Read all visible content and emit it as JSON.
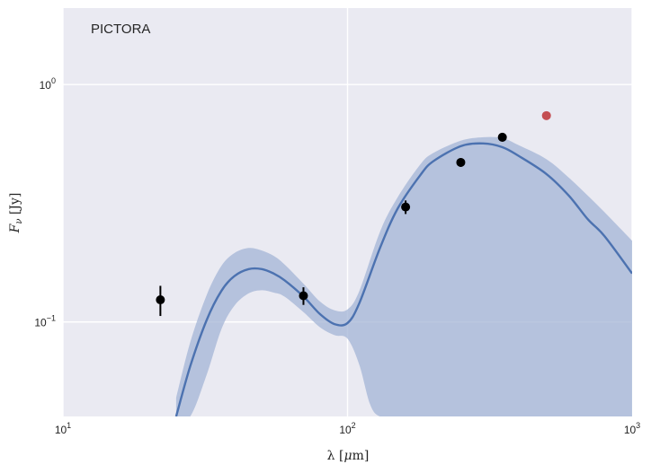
{
  "chart_data": {
    "type": "line",
    "title": "",
    "annotation": "PICTORA",
    "xlabel_main": "λ [",
    "xlabel_unit_greek": "μ",
    "xlabel_unit_rest": "m]",
    "ylabel_main": "F",
    "ylabel_sub": "ν",
    "ylabel_unit": " [Jy]",
    "x_scale": "log",
    "y_scale": "log",
    "xlim": [
      10,
      1000
    ],
    "ylim": [
      0.04,
      2.1
    ],
    "grid": true,
    "x_ticks": [
      {
        "value": 10,
        "base": "10",
        "exp": "1"
      },
      {
        "value": 100,
        "base": "10",
        "exp": "2"
      },
      {
        "value": 1000,
        "base": "10",
        "exp": "3"
      }
    ],
    "y_ticks": [
      {
        "value": 0.1,
        "base": "10",
        "exp": "−1"
      },
      {
        "value": 1,
        "base": "10",
        "exp": "0"
      }
    ],
    "colors": {
      "background": "#eaeaf2",
      "grid": "#ffffff",
      "model_line": "#4c72b0",
      "uncertainty_band": "#a3b4d6",
      "observed_points": "#000000",
      "extra_point": "#c44e52"
    },
    "observed_points": [
      {
        "x": 22,
        "y": 0.124,
        "yerr_low": 0.018,
        "yerr_high": 0.018
      },
      {
        "x": 70,
        "y": 0.129,
        "yerr_low": 0.011,
        "yerr_high": 0.011
      },
      {
        "x": 160,
        "y": 0.305,
        "yerr_low": 0.02,
        "yerr_high": 0.02
      },
      {
        "x": 250,
        "y": 0.47,
        "yerr_low": 0.02,
        "yerr_high": 0.02
      },
      {
        "x": 350,
        "y": 0.6,
        "yerr_low": 0.025,
        "yerr_high": 0.025
      }
    ],
    "extra_points": [
      {
        "x": 500,
        "y": 0.74
      }
    ],
    "model_curve": {
      "x": [
        25,
        28,
        32,
        36,
        40,
        45,
        50,
        55,
        60,
        70,
        80,
        90,
        100,
        110,
        130,
        150,
        180,
        200,
        250,
        300,
        350,
        400,
        500,
        600,
        700,
        800,
        1000
      ],
      "y": [
        0.04,
        0.065,
        0.102,
        0.135,
        0.156,
        0.167,
        0.167,
        0.16,
        0.15,
        0.128,
        0.108,
        0.098,
        0.099,
        0.12,
        0.205,
        0.3,
        0.415,
        0.475,
        0.55,
        0.565,
        0.545,
        0.5,
        0.42,
        0.34,
        0.27,
        0.23,
        0.16
      ]
    },
    "band_upper": {
      "x": [
        25,
        28,
        32,
        36,
        40,
        45,
        50,
        55,
        60,
        70,
        80,
        90,
        100,
        110,
        130,
        150,
        180,
        200,
        250,
        300,
        350,
        400,
        500,
        600,
        700,
        800,
        1000
      ],
      "y": [
        0.048,
        0.082,
        0.13,
        0.172,
        0.195,
        0.205,
        0.2,
        0.19,
        0.175,
        0.145,
        0.122,
        0.112,
        0.113,
        0.135,
        0.24,
        0.335,
        0.46,
        0.515,
        0.58,
        0.6,
        0.595,
        0.555,
        0.485,
        0.405,
        0.34,
        0.29,
        0.22
      ]
    },
    "band_lower": {
      "x": [
        1000,
        800,
        700,
        600,
        500,
        400,
        350,
        300,
        250,
        200,
        180,
        150,
        130,
        120,
        110,
        100,
        90,
        80,
        70,
        60,
        55,
        50,
        45,
        40,
        36,
        32,
        28,
        25
      ],
      "y": [
        0.04,
        0.04,
        0.04,
        0.04,
        0.04,
        0.04,
        0.04,
        0.04,
        0.04,
        0.04,
        0.04,
        0.04,
        0.04,
        0.045,
        0.066,
        0.085,
        0.088,
        0.095,
        0.11,
        0.128,
        0.133,
        0.136,
        0.132,
        0.117,
        0.093,
        0.06,
        0.04,
        0.04
      ]
    }
  }
}
